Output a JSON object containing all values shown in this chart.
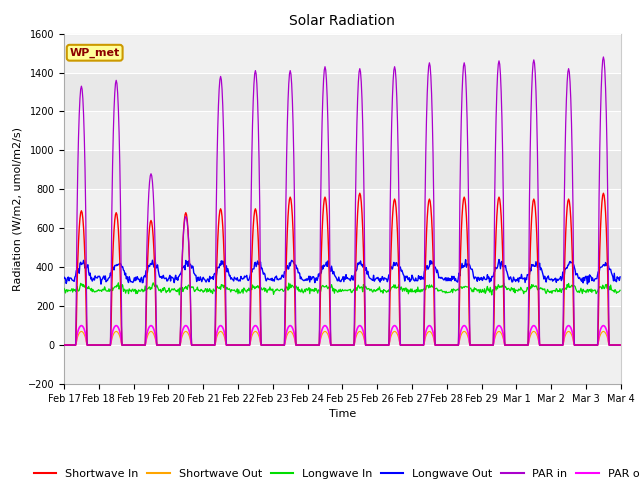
{
  "title": "Solar Radiation",
  "ylabel": "Radiation (W/m2, umol/m2/s)",
  "xlabel": "Time",
  "ylim": [
    -200,
    1600
  ],
  "yticks": [
    -200,
    0,
    200,
    400,
    600,
    800,
    1000,
    1200,
    1400,
    1600
  ],
  "plot_bg_color": "#e8e8e8",
  "band_color": "#d8d8d8",
  "colors": {
    "shortwave_in": "#ff0000",
    "shortwave_out": "#ffa500",
    "longwave_in": "#00dd00",
    "longwave_out": "#0000ff",
    "par_in": "#aa00cc",
    "par_out": "#ff00ff"
  },
  "legend_labels": [
    "Shortwave In",
    "Shortwave Out",
    "Longwave In",
    "Longwave Out",
    "PAR in",
    "PAR out"
  ],
  "annotation_text": "WP_met",
  "annotation_color": "#8b0000",
  "annotation_bg": "#ffff99",
  "annotation_edge": "#cc9900",
  "n_days": 16,
  "pts_per_day": 48,
  "title_fontsize": 10,
  "ylabel_fontsize": 8,
  "xlabel_fontsize": 8,
  "tick_fontsize": 7,
  "legend_fontsize": 8
}
